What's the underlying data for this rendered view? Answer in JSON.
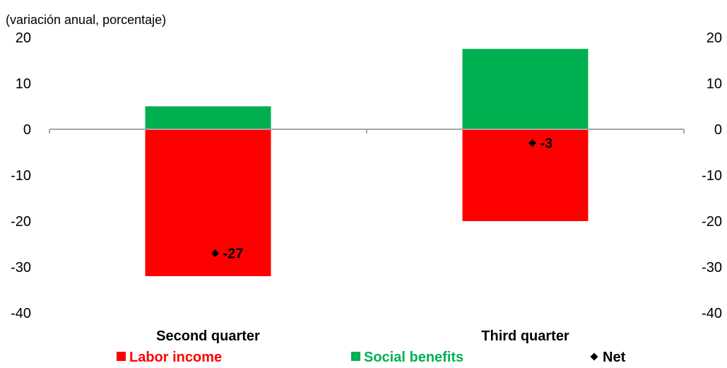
{
  "chart_data": {
    "type": "bar",
    "stacked": true,
    "unit_label": "(variación anual, porcentaje)",
    "categories": [
      "Second quarter",
      "Third quarter"
    ],
    "ylim": [
      -40,
      20
    ],
    "yticks": [
      20,
      10,
      0,
      -10,
      -20,
      -30,
      -40
    ],
    "grid": false,
    "secondary_axis_mirrors_primary": true,
    "series": [
      {
        "name": "Labor income",
        "kind": "bar",
        "color": "#ff0000",
        "values": [
          -32,
          -20
        ]
      },
      {
        "name": "Social benefits",
        "kind": "bar",
        "color": "#00b050",
        "values": [
          5,
          17.5
        ]
      },
      {
        "name": "Net",
        "kind": "marker",
        "marker": "diamond",
        "color": "#000000",
        "values": [
          -27,
          -3
        ]
      }
    ],
    "data_labels": [
      "-27",
      "-3"
    ],
    "legend_position": "bottom"
  }
}
